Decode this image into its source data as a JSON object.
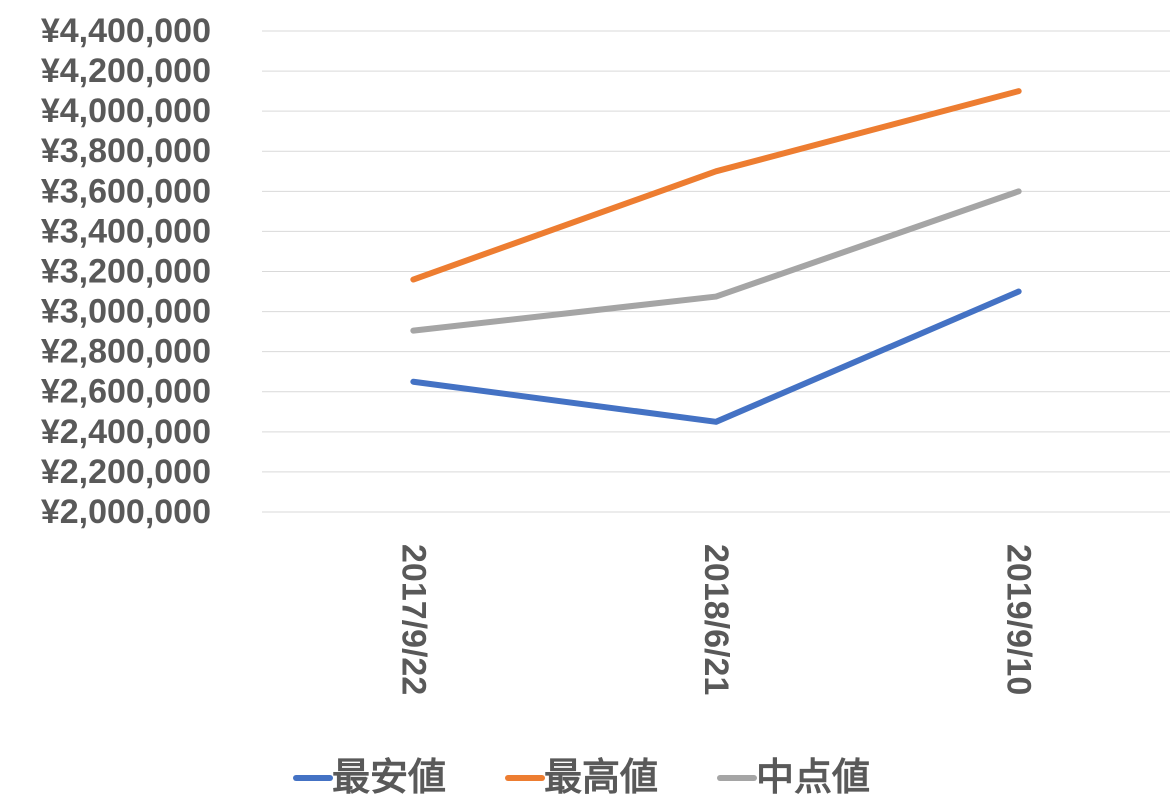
{
  "chart_data": {
    "type": "line",
    "categories": [
      "2017/9/22",
      "2018/6/21",
      "2019/9/10"
    ],
    "series": [
      {
        "name": "最安値",
        "color": "#4472c4",
        "values": [
          2650000,
          2450000,
          3100000
        ]
      },
      {
        "name": "最高値",
        "color": "#ed7d31",
        "values": [
          3160000,
          3700000,
          4100000
        ]
      },
      {
        "name": "中点値",
        "color": "#a5a5a5",
        "values": [
          2905000,
          3075000,
          3600000
        ]
      }
    ],
    "ylim": [
      2000000,
      4400000
    ],
    "yticks": [
      {
        "value": 2000000,
        "label": "¥2,000,000"
      },
      {
        "value": 2200000,
        "label": "¥2,200,000"
      },
      {
        "value": 2400000,
        "label": "¥2,400,000"
      },
      {
        "value": 2600000,
        "label": "¥2,600,000"
      },
      {
        "value": 2800000,
        "label": "¥2,800,000"
      },
      {
        "value": 3000000,
        "label": "¥3,000,000"
      },
      {
        "value": 3200000,
        "label": "¥3,200,000"
      },
      {
        "value": 3400000,
        "label": "¥3,400,000"
      },
      {
        "value": 3600000,
        "label": "¥3,600,000"
      },
      {
        "value": 3800000,
        "label": "¥3,800,000"
      },
      {
        "value": 4000000,
        "label": "¥4,000,000"
      },
      {
        "value": 4200000,
        "label": "¥4,200,000"
      },
      {
        "value": 4400000,
        "label": "¥4,400,000"
      }
    ],
    "grid": true,
    "legend": "bottom"
  }
}
